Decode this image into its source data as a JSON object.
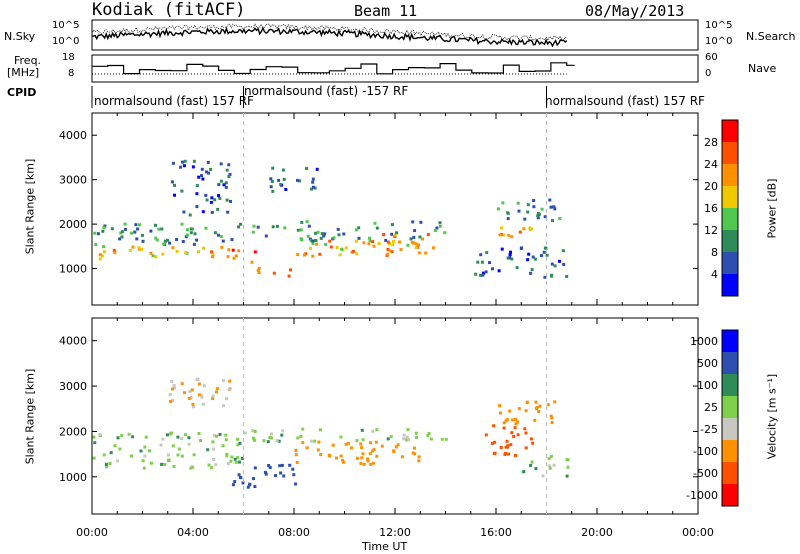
{
  "header": {
    "station": "Kodiak (fitACF)",
    "beam": "Beam 11",
    "date": "08/May/2013"
  },
  "strips": {
    "nsky_label": "N.Sky",
    "nsearch_label": "N.Search",
    "freq_label_1": "Freq.",
    "freq_label_2": "[MHz]",
    "nave_label": "Nave",
    "cpid_label": "CPID",
    "nsky_ticks": [
      "10^5",
      "10^0"
    ],
    "nsearch_ticks": [
      "10^5",
      "10^0"
    ],
    "freq_ticks": [
      "18",
      "8"
    ],
    "nave_ticks": [
      "60",
      "0"
    ]
  },
  "cpid": {
    "segments": [
      {
        "label": "normalsound (fast) 157 RF",
        "start_h": 0.0
      },
      {
        "label": "normalsound (fast) -157 RF",
        "start_h": 6.0
      },
      {
        "label": "normalsound (fast) 157 RF",
        "start_h": 18.0
      }
    ]
  },
  "colors": {
    "power": [
      "#0000ff",
      "#2f4fb0",
      "#2e8b57",
      "#50c850",
      "#f0c800",
      "#ff9000",
      "#ff5000",
      "#ff0000"
    ],
    "velocity": [
      "#ff0000",
      "#ff5000",
      "#ff9000",
      "#c8c8c0",
      "#7ed04a",
      "#2e8b57",
      "#2f4fb0",
      "#0000ff"
    ]
  },
  "chart_data": [
    {
      "type": "heatmap",
      "panel": "power",
      "xlabel": "",
      "ylabel": "Slant Range [km]",
      "x_unit": "hours UT",
      "xlim": [
        0,
        24
      ],
      "ylim": [
        180,
        4500
      ],
      "yticks": [
        1000,
        2000,
        3000,
        4000
      ],
      "colorbar": {
        "label": "Power [dB]",
        "tick_values": [
          4,
          8,
          12,
          16,
          20,
          24,
          28
        ],
        "tick_labels": [
          "4",
          "8",
          "12",
          "16",
          "20",
          "24",
          "28"
        ],
        "range": [
          0,
          32
        ]
      },
      "regions": [
        {
          "t": [
            0.2,
            6.0
          ],
          "r": [
            1250,
            1550
          ],
          "v": 20
        },
        {
          "t": [
            0.0,
            6.0
          ],
          "r": [
            1550,
            2050
          ],
          "v": 10
        },
        {
          "t": [
            3.0,
            5.5
          ],
          "r": [
            2200,
            3500
          ],
          "v": 7
        },
        {
          "t": [
            5.5,
            6.5
          ],
          "r": [
            1100,
            1500
          ],
          "v": 26
        },
        {
          "t": [
            6.5,
            8.0
          ],
          "r": [
            800,
            1100
          ],
          "v": 24
        },
        {
          "t": [
            8.0,
            13.0
          ],
          "r": [
            1300,
            1650
          ],
          "v": 20
        },
        {
          "t": [
            11.0,
            13.5
          ],
          "r": [
            1350,
            1800
          ],
          "v": 24
        },
        {
          "t": [
            6.0,
            14.0
          ],
          "r": [
            1650,
            2100
          ],
          "v": 10
        },
        {
          "t": [
            7.0,
            9.0
          ],
          "r": [
            2700,
            3300
          ],
          "v": 7
        },
        {
          "t": [
            15.5,
            17.5
          ],
          "r": [
            1600,
            2000
          ],
          "v": 22
        },
        {
          "t": [
            16.0,
            18.5
          ],
          "r": [
            2000,
            2600
          ],
          "v": 10
        },
        {
          "t": [
            15.0,
            18.8
          ],
          "r": [
            800,
            1500
          ],
          "v": 7
        }
      ]
    },
    {
      "type": "heatmap",
      "panel": "velocity",
      "xlabel": "Time UT",
      "ylabel": "Slant Range [km]",
      "x_unit": "hours UT",
      "xlim": [
        0,
        24
      ],
      "ylim": [
        180,
        4500
      ],
      "yticks": [
        1000,
        2000,
        3000,
        4000
      ],
      "xticks": [
        0,
        4,
        8,
        12,
        16,
        20,
        24
      ],
      "xtick_labels": [
        "00:00",
        "04:00",
        "08:00",
        "12:00",
        "16:00",
        "20:00",
        "00:00"
      ],
      "colorbar": {
        "label": "Velocity [m s⁻¹]",
        "tick_labels": [
          "-1000",
          "-500",
          "-100",
          "-25",
          "25",
          "100",
          "500",
          "1000"
        ],
        "levels": 8
      },
      "regions": [
        {
          "t": [
            0.0,
            6.0
          ],
          "r": [
            1200,
            2000
          ],
          "v": 0
        },
        {
          "t": [
            3.0,
            5.5
          ],
          "r": [
            2500,
            3200
          ],
          "v": -100
        },
        {
          "t": [
            5.5,
            8.0
          ],
          "r": [
            800,
            1300
          ],
          "v": 200
        },
        {
          "t": [
            8.0,
            13.0
          ],
          "r": [
            1300,
            1800
          ],
          "v": -300
        },
        {
          "t": [
            6.0,
            14.0
          ],
          "r": [
            1800,
            2100
          ],
          "v": 0
        },
        {
          "t": [
            15.5,
            17.5
          ],
          "r": [
            1500,
            2200
          ],
          "v": -800
        },
        {
          "t": [
            16.0,
            18.5
          ],
          "r": [
            2200,
            2700
          ],
          "v": -150
        },
        {
          "t": [
            17.0,
            18.8
          ],
          "r": [
            1000,
            1500
          ],
          "v": 0
        }
      ]
    }
  ]
}
